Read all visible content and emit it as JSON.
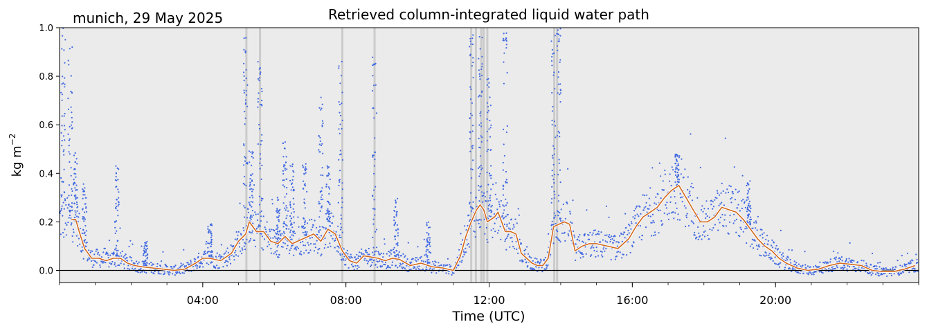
{
  "chart_data": {
    "type": "scatter",
    "title": "Retrieved column-integrated liquid water path",
    "subtitle": "munich, 29 May 2025",
    "xlabel": "Time (UTC)",
    "ylabel": "kg m",
    "ylabel_exponent": "−2",
    "xlim_hours": [
      0,
      24
    ],
    "ylim": [
      -0.05,
      1.0
    ],
    "x_ticks": [
      {
        "hour": 4,
        "label": "04:00"
      },
      {
        "hour": 8,
        "label": "08:00"
      },
      {
        "hour": 12,
        "label": "12:00"
      },
      {
        "hour": 16,
        "label": "16:00"
      },
      {
        "hour": 20,
        "label": "20:00"
      }
    ],
    "y_ticks": [
      {
        "value": 0.0,
        "label": "0.0"
      },
      {
        "value": 0.2,
        "label": "0.2"
      },
      {
        "value": 0.4,
        "label": "0.4"
      },
      {
        "value": 0.6,
        "label": "0.6"
      },
      {
        "value": 0.8,
        "label": "0.8"
      },
      {
        "value": 1.0,
        "label": "1.0"
      }
    ],
    "grid": false,
    "zero_line": true,
    "background_color": "#ebebeb",
    "colors": {
      "raw": "#4169e1",
      "smoothed": "#d2691e",
      "flag": "#c8c8c8"
    },
    "flagged_hours": [
      5.22,
      5.6,
      7.9,
      8.8,
      11.5,
      11.63,
      11.78,
      11.85,
      11.95,
      13.82,
      13.9
    ],
    "smoothed_series": {
      "x_hours": [
        0.33,
        0.45,
        0.55,
        0.7,
        0.9,
        1.1,
        1.3,
        1.5,
        1.7,
        1.9,
        2.1,
        2.3,
        2.6,
        2.9,
        3.2,
        3.5,
        3.8,
        4.0,
        4.2,
        4.5,
        4.8,
        5.0,
        5.2,
        5.3,
        5.5,
        5.7,
        5.9,
        6.1,
        6.3,
        6.5,
        6.8,
        7.1,
        7.3,
        7.5,
        7.7,
        7.9,
        8.1,
        8.3,
        8.5,
        8.7,
        8.9,
        9.1,
        9.3,
        9.5,
        9.8,
        10.1,
        10.4,
        10.7,
        11.0,
        11.2,
        11.35,
        11.5,
        11.65,
        11.75,
        11.85,
        11.95,
        12.05,
        12.15,
        12.25,
        12.35,
        12.45,
        12.6,
        12.75,
        12.9,
        13.05,
        13.2,
        13.35,
        13.5,
        13.65,
        13.8,
        13.95,
        14.1,
        14.25,
        14.4,
        14.6,
        14.8,
        15.0,
        15.3,
        15.6,
        15.9,
        16.1,
        16.3,
        16.5,
        16.7,
        16.9,
        17.1,
        17.3,
        17.5,
        17.7,
        17.9,
        18.1,
        18.3,
        18.5,
        18.7,
        18.9,
        19.1,
        19.3,
        19.5,
        19.7,
        19.9,
        20.1,
        20.3,
        20.6,
        20.9,
        21.2,
        21.5,
        21.8,
        22.1,
        22.4,
        22.7,
        23.0,
        23.3,
        23.6,
        23.9
      ],
      "values": [
        0.21,
        0.21,
        0.16,
        0.09,
        0.05,
        0.05,
        0.04,
        0.05,
        0.05,
        0.03,
        0.02,
        0.015,
        0.01,
        0.005,
        0.0,
        0.005,
        0.03,
        0.05,
        0.05,
        0.04,
        0.07,
        0.12,
        0.15,
        0.2,
        0.16,
        0.16,
        0.12,
        0.11,
        0.14,
        0.11,
        0.13,
        0.15,
        0.12,
        0.17,
        0.15,
        0.08,
        0.04,
        0.03,
        0.06,
        0.055,
        0.05,
        0.04,
        0.05,
        0.045,
        0.02,
        0.03,
        0.015,
        0.01,
        0.0,
        0.06,
        0.14,
        0.2,
        0.25,
        0.27,
        0.25,
        0.2,
        0.21,
        0.22,
        0.24,
        0.2,
        0.16,
        0.16,
        0.15,
        0.07,
        0.05,
        0.03,
        0.02,
        0.02,
        0.05,
        0.18,
        0.19,
        0.2,
        0.19,
        0.08,
        0.1,
        0.11,
        0.11,
        0.1,
        0.09,
        0.13,
        0.18,
        0.22,
        0.24,
        0.26,
        0.3,
        0.33,
        0.35,
        0.3,
        0.25,
        0.2,
        0.2,
        0.22,
        0.26,
        0.25,
        0.24,
        0.21,
        0.17,
        0.13,
        0.1,
        0.08,
        0.05,
        0.03,
        0.01,
        0.0,
        0.005,
        0.02,
        0.03,
        0.025,
        0.02,
        0.0,
        -0.005,
        -0.005,
        0.005,
        0.02
      ]
    },
    "raw_spikes": [
      {
        "hour": 0.1,
        "max": 1.0
      },
      {
        "hour": 0.3,
        "max": 0.93
      },
      {
        "hour": 0.45,
        "max": 0.5
      },
      {
        "hour": 0.7,
        "max": 0.36
      },
      {
        "hour": 1.6,
        "max": 0.44
      },
      {
        "hour": 2.4,
        "max": 0.12
      },
      {
        "hour": 4.2,
        "max": 0.2
      },
      {
        "hour": 5.2,
        "max": 0.96
      },
      {
        "hour": 5.35,
        "max": 0.5
      },
      {
        "hour": 5.6,
        "max": 0.86
      },
      {
        "hour": 6.1,
        "max": 0.3
      },
      {
        "hour": 6.3,
        "max": 0.53
      },
      {
        "hour": 6.5,
        "max": 0.44
      },
      {
        "hour": 6.85,
        "max": 0.45
      },
      {
        "hour": 7.3,
        "max": 0.72
      },
      {
        "hour": 7.5,
        "max": 0.43
      },
      {
        "hour": 7.85,
        "max": 0.88
      },
      {
        "hour": 8.8,
        "max": 0.88
      },
      {
        "hour": 9.4,
        "max": 0.3
      },
      {
        "hour": 10.3,
        "max": 0.2
      },
      {
        "hour": 11.5,
        "max": 0.98
      },
      {
        "hour": 11.75,
        "max": 0.97
      },
      {
        "hour": 12.0,
        "max": 0.85
      },
      {
        "hour": 12.45,
        "max": 1.0
      },
      {
        "hour": 13.8,
        "max": 1.0
      },
      {
        "hour": 13.95,
        "max": 1.0
      },
      {
        "hour": 17.25,
        "max": 0.48
      },
      {
        "hour": 19.25,
        "max": 0.37
      }
    ]
  }
}
